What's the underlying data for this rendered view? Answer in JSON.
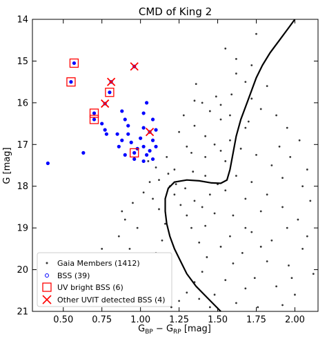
{
  "chart_data": {
    "type": "scatter",
    "title": "CMD of King 2",
    "xlabel_main": "G",
    "xlabel_sub1": "BP",
    "xlabel_mid": " − G",
    "xlabel_sub2": "RP",
    "xlabel_end": " [mag]",
    "ylabel": "G [mag]",
    "xlim": [
      0.3,
      2.15
    ],
    "ylim": [
      21,
      14
    ],
    "y_inverted": true,
    "x_ticks": [
      0.5,
      0.75,
      1.0,
      1.25,
      1.5,
      1.75,
      2.0
    ],
    "x_tick_labels": [
      "0.50",
      "0.75",
      "1.00",
      "1.25",
      "1.50",
      "1.75",
      "2.00"
    ],
    "y_ticks": [
      14,
      15,
      16,
      17,
      18,
      19,
      20,
      21
    ],
    "y_tick_labels": [
      "14",
      "15",
      "16",
      "17",
      "18",
      "19",
      "20",
      "21"
    ],
    "grid": false,
    "legend_position": "bottom-left",
    "legend": [
      {
        "label": "Gaia Members (1412)",
        "marker": "dot",
        "color": "#333333"
      },
      {
        "label": "BSS (39)",
        "marker": "open-circle",
        "color": "#0000ff"
      },
      {
        "label": "UV bright BSS (6)",
        "marker": "open-square",
        "color": "#ff0000"
      },
      {
        "label": "Other UVIT detected BSS (4)",
        "marker": "x",
        "color": "#ff0000"
      }
    ],
    "series": [
      {
        "name": "Gaia Members (1412)",
        "color": "#333333",
        "points": [
          [
            1.36,
            15.55
          ],
          [
            1.49,
            15.85
          ],
          [
            1.59,
            15.8
          ],
          [
            1.72,
            15.9
          ],
          [
            1.82,
            15.6
          ],
          [
            1.72,
            15.1
          ],
          [
            1.62,
            15.3
          ],
          [
            1.45,
            16.2
          ],
          [
            1.52,
            16.4
          ],
          [
            1.35,
            16.55
          ],
          [
            1.25,
            16.7
          ],
          [
            1.42,
            16.8
          ],
          [
            1.58,
            16.9
          ],
          [
            1.68,
            16.6
          ],
          [
            1.88,
            16.3
          ],
          [
            1.78,
            16.15
          ],
          [
            1.95,
            16.6
          ],
          [
            2.03,
            16.9
          ],
          [
            1.65,
            17.1
          ],
          [
            1.52,
            17.15
          ],
          [
            1.42,
            17.3
          ],
          [
            1.33,
            17.2
          ],
          [
            1.17,
            17.3
          ],
          [
            1.05,
            17.4
          ],
          [
            1.1,
            17.55
          ],
          [
            1.22,
            17.6
          ],
          [
            1.55,
            17.4
          ],
          [
            1.75,
            17.25
          ],
          [
            1.85,
            17.5
          ],
          [
            1.97,
            17.3
          ],
          [
            1.62,
            17.75
          ],
          [
            1.72,
            17.9
          ],
          [
            1.92,
            17.8
          ],
          [
            2.05,
            18.0
          ],
          [
            1.82,
            18.2
          ],
          [
            1.68,
            18.3
          ],
          [
            1.55,
            18.1
          ],
          [
            1.92,
            18.5
          ],
          [
            1.78,
            18.6
          ],
          [
            2.02,
            18.8
          ],
          [
            1.6,
            18.7
          ],
          [
            1.72,
            19.1
          ],
          [
            1.85,
            19.3
          ],
          [
            1.95,
            19.0
          ],
          [
            2.05,
            19.5
          ],
          [
            1.66,
            19.6
          ],
          [
            1.82,
            19.8
          ],
          [
            1.96,
            19.9
          ],
          [
            1.74,
            20.2
          ],
          [
            1.88,
            20.4
          ],
          [
            2.0,
            20.6
          ],
          [
            1.62,
            20.8
          ],
          [
            1.76,
            20.9
          ],
          [
            1.92,
            20.85
          ],
          [
            1.02,
            18.15
          ],
          [
            0.95,
            18.4
          ],
          [
            0.9,
            18.8
          ],
          [
            0.86,
            19.2
          ],
          [
            0.93,
            19.5
          ],
          [
            0.82,
            19.9
          ],
          [
            0.9,
            20.2
          ],
          [
            0.85,
            20.5
          ],
          [
            0.96,
            20.8
          ],
          [
            1.05,
            19.8
          ],
          [
            1.02,
            20.4
          ],
          [
            0.78,
            20.7
          ],
          [
            0.75,
            19.5
          ],
          [
            0.98,
            19.0
          ],
          [
            0.88,
            18.6
          ],
          [
            1.06,
            17.9
          ],
          [
            1.62,
            14.95
          ],
          [
            1.55,
            14.7
          ],
          [
            1.75,
            14.35
          ],
          [
            1.68,
            15.5
          ],
          [
            1.4,
            16.0
          ],
          [
            1.28,
            16.3
          ],
          [
            1.52,
            16.05
          ],
          [
            1.7,
            16.45
          ],
          [
            1.35,
            15.95
          ],
          [
            1.48,
            17.0
          ],
          [
            1.58,
            16.3
          ],
          [
            1.9,
            17.05
          ],
          [
            2.08,
            17.6
          ],
          [
            2.1,
            18.35
          ],
          [
            2.08,
            19.2
          ],
          [
            2.12,
            20.1
          ],
          [
            1.98,
            20.2
          ],
          [
            1.78,
            19.45
          ],
          [
            1.68,
            19.0
          ],
          [
            1.58,
            19.2
          ],
          [
            1.48,
            18.65
          ],
          [
            1.42,
            18.95
          ],
          [
            1.52,
            19.45
          ],
          [
            1.6,
            19.85
          ],
          [
            1.55,
            20.25
          ],
          [
            1.48,
            20.6
          ],
          [
            1.68,
            20.45
          ],
          [
            1.45,
            20.9
          ],
          [
            1.38,
            20.7
          ],
          [
            1.3,
            17.05
          ],
          [
            1.18,
            17.7
          ],
          [
            1.12,
            17.85
          ],
          [
            1.08,
            18.3
          ],
          [
            1.12,
            18.55
          ],
          [
            1.16,
            18.9
          ],
          [
            1.14,
            19.3
          ],
          [
            1.1,
            19.6
          ],
          [
            1.12,
            19.95
          ],
          [
            1.08,
            20.25
          ],
          [
            1.15,
            20.6
          ],
          [
            1.2,
            20.9
          ],
          [
            1.25,
            20.75
          ],
          [
            1.3,
            20.55
          ],
          [
            1.35,
            20.3
          ],
          [
            1.4,
            20.05
          ],
          [
            1.43,
            19.7
          ],
          [
            1.38,
            19.35
          ],
          [
            1.33,
            19.0
          ],
          [
            1.3,
            18.7
          ],
          [
            1.26,
            18.45
          ],
          [
            1.22,
            18.2
          ],
          [
            1.19,
            18.0
          ],
          [
            1.23,
            17.95
          ],
          [
            1.29,
            18.05
          ],
          [
            1.35,
            18.35
          ],
          [
            1.4,
            18.5
          ],
          [
            1.45,
            18.2
          ],
          [
            1.5,
            17.95
          ],
          [
            1.42,
            17.75
          ],
          [
            1.34,
            17.65
          ]
        ]
      },
      {
        "name": "BSS (39)",
        "color": "#0000ff",
        "points": [
          [
            0.57,
            15.05
          ],
          [
            0.55,
            15.5
          ],
          [
            0.81,
            15.5
          ],
          [
            0.8,
            15.75
          ],
          [
            0.7,
            16.25
          ],
          [
            0.7,
            16.4
          ],
          [
            0.77,
            16.02
          ],
          [
            0.96,
            15.13
          ],
          [
            1.06,
            16.7
          ],
          [
            0.96,
            17.2
          ],
          [
            0.4,
            17.45
          ],
          [
            0.63,
            17.2
          ],
          [
            0.75,
            16.5
          ],
          [
            0.77,
            16.65
          ],
          [
            0.78,
            16.75
          ],
          [
            0.88,
            16.2
          ],
          [
            0.9,
            16.4
          ],
          [
            0.92,
            16.55
          ],
          [
            0.85,
            16.75
          ],
          [
            0.88,
            16.9
          ],
          [
            0.92,
            16.75
          ],
          [
            0.94,
            16.95
          ],
          [
            1.0,
            16.85
          ],
          [
            1.02,
            16.6
          ],
          [
            1.02,
            16.25
          ],
          [
            1.04,
            16.0
          ],
          [
            1.08,
            16.4
          ],
          [
            1.1,
            16.65
          ],
          [
            1.08,
            16.9
          ],
          [
            1.1,
            17.05
          ],
          [
            1.02,
            17.05
          ],
          [
            1.06,
            17.15
          ],
          [
            0.98,
            17.1
          ],
          [
            1.04,
            17.25
          ],
          [
            0.86,
            17.05
          ],
          [
            0.9,
            17.25
          ],
          [
            0.96,
            17.35
          ],
          [
            1.02,
            17.4
          ],
          [
            1.08,
            17.35
          ]
        ]
      },
      {
        "name": "UV bright BSS (6)",
        "color": "#ff0000",
        "points": [
          [
            0.57,
            15.05
          ],
          [
            0.55,
            15.5
          ],
          [
            0.8,
            15.75
          ],
          [
            0.7,
            16.25
          ],
          [
            0.7,
            16.4
          ],
          [
            0.96,
            17.2
          ]
        ]
      },
      {
        "name": "Other UVIT detected BSS (4)",
        "color": "#ff0000",
        "points": [
          [
            0.96,
            15.13
          ],
          [
            0.81,
            15.5
          ],
          [
            0.77,
            16.02
          ],
          [
            1.06,
            16.7
          ]
        ]
      }
    ],
    "isochrone": {
      "name": "isochrone",
      "color": "#000000",
      "points": [
        [
          1.52,
          21.0
        ],
        [
          1.44,
          20.7
        ],
        [
          1.36,
          20.4
        ],
        [
          1.3,
          20.1
        ],
        [
          1.26,
          19.8
        ],
        [
          1.22,
          19.5
        ],
        [
          1.19,
          19.2
        ],
        [
          1.17,
          18.9
        ],
        [
          1.16,
          18.6
        ],
        [
          1.16,
          18.3
        ],
        [
          1.18,
          18.05
        ],
        [
          1.22,
          17.9
        ],
        [
          1.3,
          17.85
        ],
        [
          1.38,
          17.87
        ],
        [
          1.46,
          17.92
        ],
        [
          1.52,
          17.93
        ],
        [
          1.56,
          17.85
        ],
        [
          1.58,
          17.6
        ],
        [
          1.6,
          17.2
        ],
        [
          1.62,
          16.8
        ],
        [
          1.65,
          16.4
        ],
        [
          1.69,
          16.0
        ],
        [
          1.72,
          15.7
        ],
        [
          1.75,
          15.4
        ],
        [
          1.79,
          15.1
        ],
        [
          1.84,
          14.8
        ],
        [
          1.9,
          14.5
        ],
        [
          1.96,
          14.2
        ],
        [
          2.0,
          14.0
        ]
      ]
    }
  }
}
